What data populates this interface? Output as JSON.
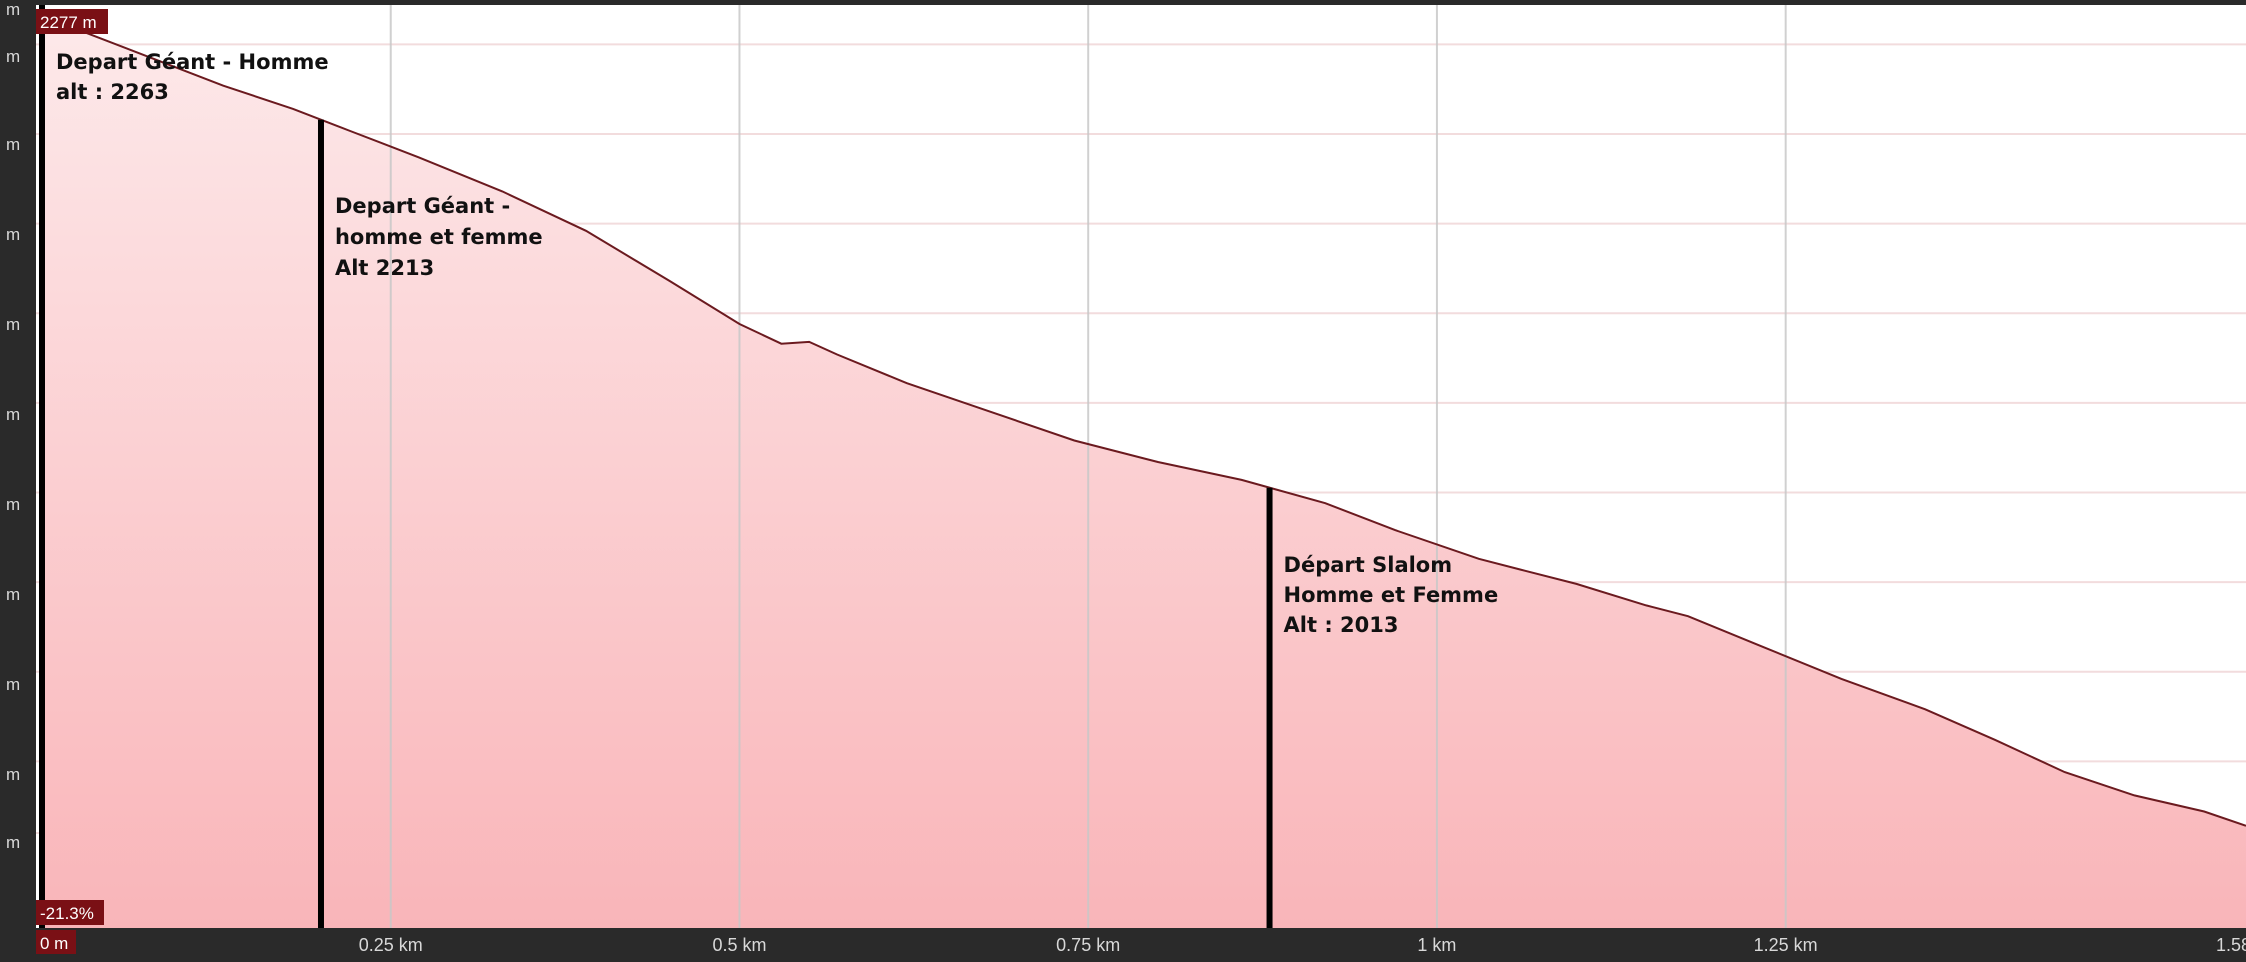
{
  "colors": {
    "line": "#6b1a1f",
    "fill_top": "#fde9ea",
    "fill_bottom": "#f9b5b9",
    "grid_major": "#c8c8c8",
    "grid_minor": "#f2dcdd",
    "frame": "#2a2a2a",
    "badge": "#7a1015",
    "marker": "#000000"
  },
  "ui": {
    "top_badge": "2277 m",
    "bottom_badge": "-21.3%",
    "origin_label": "0 m",
    "y_unit": "m"
  },
  "chart_data": {
    "type": "area",
    "title": "",
    "xlabel": "",
    "ylabel": "",
    "x_unit": "km",
    "y_unit": "m",
    "xlim": [
      0,
      1.58
    ],
    "ylim": [
      1770,
      2285
    ],
    "x_ticks": [
      {
        "value": 0.25,
        "label": "0.25 km"
      },
      {
        "value": 0.5,
        "label": "0.5 km"
      },
      {
        "value": 0.75,
        "label": "0.75 km"
      },
      {
        "value": 1.0,
        "label": "1 km"
      },
      {
        "value": 1.25,
        "label": "1.25 km"
      },
      {
        "value": 1.58,
        "label": "1.58"
      }
    ],
    "y_gridlines": [
      2263,
      2213,
      2163,
      2113,
      2063,
      2013,
      1963,
      1913,
      1863,
      1823
    ],
    "grid": true,
    "series": [
      {
        "x": [
          0,
          0.03,
          0.08,
          0.13,
          0.18,
          0.22,
          0.27,
          0.33,
          0.39,
          0.45,
          0.5,
          0.53,
          0.55,
          0.57,
          0.62,
          0.68,
          0.74,
          0.8,
          0.86,
          0.92,
          0.97,
          1.03,
          1.06,
          1.1,
          1.15,
          1.18,
          1.23,
          1.29,
          1.35,
          1.4,
          1.45,
          1.5,
          1.55,
          1.58
        ],
        "y": [
          2277,
          2270,
          2255,
          2240,
          2227,
          2215,
          2200,
          2181,
          2159,
          2131,
          2107,
          2096,
          2097,
          2090,
          2074,
          2058,
          2042,
          2030,
          2020,
          2007,
          1992,
          1976,
          1970,
          1962,
          1950,
          1944,
          1928,
          1909,
          1892,
          1875,
          1857,
          1844,
          1835,
          1827
        ]
      }
    ],
    "annotations": [
      {
        "x": 0.0,
        "lines": [
          "Depart Géant - Homme",
          " alt  : 2263"
        ]
      },
      {
        "x": 0.2,
        "lines": [
          "Depart Géant -",
          "homme et femme",
          "Alt 2213"
        ]
      },
      {
        "x": 0.88,
        "lines": [
          "Départ Slalom",
          "Homme et Femme",
          "Alt : 2013"
        ]
      }
    ]
  }
}
